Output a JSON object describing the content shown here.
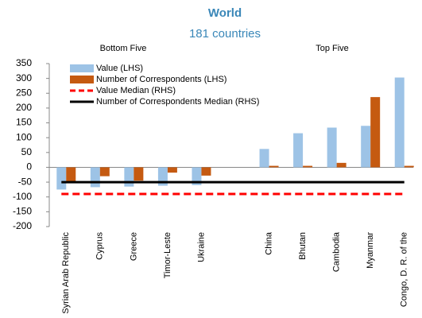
{
  "chart_data": {
    "type": "bar",
    "title": "World",
    "subtitle": "181 countries",
    "annotations": [
      "Bottom Five",
      "Top Five"
    ],
    "categories": [
      "Syrian Arab Republic",
      "Cyprus",
      "Greece",
      "Timor-Leste",
      "Ukraine",
      null,
      "China",
      "Bhutan",
      "Cambodia",
      "Myanmar",
      "Congo, D. R. of the"
    ],
    "series": [
      {
        "name": "Value (LHS)",
        "type": "bar",
        "color": "#9dc3e6",
        "values": [
          -75,
          -67,
          -65,
          -62,
          -60,
          null,
          62,
          115,
          134,
          140,
          303
        ]
      },
      {
        "name": "Number of Correspondents (LHS)",
        "type": "bar",
        "color": "#c55a11",
        "values": [
          -48,
          -30,
          -45,
          -18,
          -28,
          null,
          5,
          5,
          15,
          237,
          5
        ]
      },
      {
        "name": "Value Median (RHS)",
        "type": "line",
        "dash": true,
        "color": "#ff0000",
        "values": [
          -90,
          -90,
          -90,
          -90,
          -90,
          -90,
          -90,
          -90,
          -90,
          -90,
          -90
        ]
      },
      {
        "name": "Number of Correspondents Median (RHS)",
        "type": "line",
        "dash": false,
        "color": "#000000",
        "values": [
          -50,
          -50,
          -50,
          -50,
          -50,
          -50,
          -50,
          -50,
          -50,
          -50,
          -50
        ]
      }
    ],
    "ylim": [
      -200,
      350
    ],
    "yticks": [
      -200,
      -150,
      -100,
      -50,
      0,
      50,
      100,
      150,
      200,
      250,
      300,
      350
    ],
    "grid": false
  }
}
